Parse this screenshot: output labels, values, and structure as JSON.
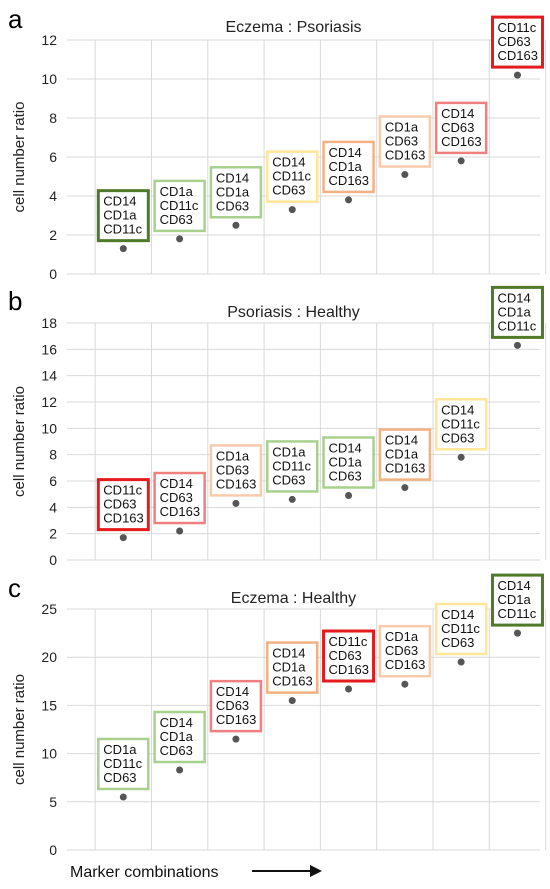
{
  "figure": {
    "xlabel": "Marker combinations"
  },
  "colors": {
    "dark_green": "#4e7a2a",
    "light_green": "#a9d18e",
    "yellow": "#ffe699",
    "orange": "#f4b183",
    "light_pink": "#f8cbad",
    "salmon": "#f08080",
    "red": "#e41a1c",
    "dot": "#555555",
    "grid": "#d9d9d9"
  },
  "chart_data": [
    {
      "panel": "a",
      "type": "scatter",
      "title": "Eczema : Psoriasis",
      "ylabel": "cell number ratio",
      "ylim": [
        0,
        12
      ],
      "yticks": [
        0,
        2,
        4,
        6,
        8,
        10,
        12
      ],
      "grid": true,
      "points": [
        {
          "value": 1.3,
          "markers": [
            "CD14",
            "CD1a",
            "CD11c"
          ],
          "color": "dark_green"
        },
        {
          "value": 1.8,
          "markers": [
            "CD1a",
            "CD11c",
            "CD63"
          ],
          "color": "light_green"
        },
        {
          "value": 2.5,
          "markers": [
            "CD14",
            "CD1a",
            "CD63"
          ],
          "color": "light_green"
        },
        {
          "value": 3.3,
          "markers": [
            "CD14",
            "CD11c",
            "CD63"
          ],
          "color": "yellow"
        },
        {
          "value": 3.8,
          "markers": [
            "CD14",
            "CD1a",
            "CD163"
          ],
          "color": "orange"
        },
        {
          "value": 5.1,
          "markers": [
            "CD1a",
            "CD63",
            "CD163"
          ],
          "color": "light_pink"
        },
        {
          "value": 5.8,
          "markers": [
            "CD14",
            "CD63",
            "CD163"
          ],
          "color": "salmon"
        },
        {
          "value": 10.2,
          "markers": [
            "CD11c",
            "CD63",
            "CD163"
          ],
          "color": "red"
        }
      ]
    },
    {
      "panel": "b",
      "type": "scatter",
      "title": "Psoriasis : Healthy",
      "ylabel": "cell number ratio",
      "ylim": [
        0,
        18
      ],
      "yticks": [
        0,
        2,
        4,
        6,
        8,
        10,
        12,
        14,
        16,
        18
      ],
      "grid": true,
      "points": [
        {
          "value": 1.7,
          "markers": [
            "CD11c",
            "CD63",
            "CD163"
          ],
          "color": "red"
        },
        {
          "value": 2.2,
          "markers": [
            "CD14",
            "CD63",
            "CD163"
          ],
          "color": "salmon"
        },
        {
          "value": 4.3,
          "markers": [
            "CD1a",
            "CD63",
            "CD163"
          ],
          "color": "light_pink"
        },
        {
          "value": 4.6,
          "markers": [
            "CD1a",
            "CD11c",
            "CD63"
          ],
          "color": "light_green"
        },
        {
          "value": 4.9,
          "markers": [
            "CD14",
            "CD1a",
            "CD63"
          ],
          "color": "light_green"
        },
        {
          "value": 5.5,
          "markers": [
            "CD14",
            "CD1a",
            "CD163"
          ],
          "color": "orange"
        },
        {
          "value": 7.8,
          "markers": [
            "CD14",
            "CD11c",
            "CD63"
          ],
          "color": "yellow"
        },
        {
          "value": 16.3,
          "markers": [
            "CD14",
            "CD1a",
            "CD11c"
          ],
          "color": "dark_green"
        }
      ]
    },
    {
      "panel": "c",
      "type": "scatter",
      "title": "Eczema : Healthy",
      "ylabel": "cell number ratio",
      "ylim": [
        0,
        25
      ],
      "yticks": [
        0,
        5,
        10,
        15,
        20,
        25
      ],
      "grid": true,
      "points": [
        {
          "value": 5.5,
          "markers": [
            "CD1a",
            "CD11c",
            "CD63"
          ],
          "color": "light_green"
        },
        {
          "value": 8.3,
          "markers": [
            "CD14",
            "CD1a",
            "CD63"
          ],
          "color": "light_green"
        },
        {
          "value": 11.5,
          "markers": [
            "CD14",
            "CD63",
            "CD163"
          ],
          "color": "salmon"
        },
        {
          "value": 15.5,
          "markers": [
            "CD14",
            "CD1a",
            "CD163"
          ],
          "color": "orange"
        },
        {
          "value": 16.7,
          "markers": [
            "CD11c",
            "CD63",
            "CD163"
          ],
          "color": "red"
        },
        {
          "value": 17.2,
          "markers": [
            "CD1a",
            "CD63",
            "CD163"
          ],
          "color": "light_pink"
        },
        {
          "value": 19.5,
          "markers": [
            "CD14",
            "CD11c",
            "CD63"
          ],
          "color": "yellow"
        },
        {
          "value": 22.5,
          "markers": [
            "CD14",
            "CD1a",
            "CD11c"
          ],
          "color": "dark_green"
        }
      ]
    }
  ]
}
